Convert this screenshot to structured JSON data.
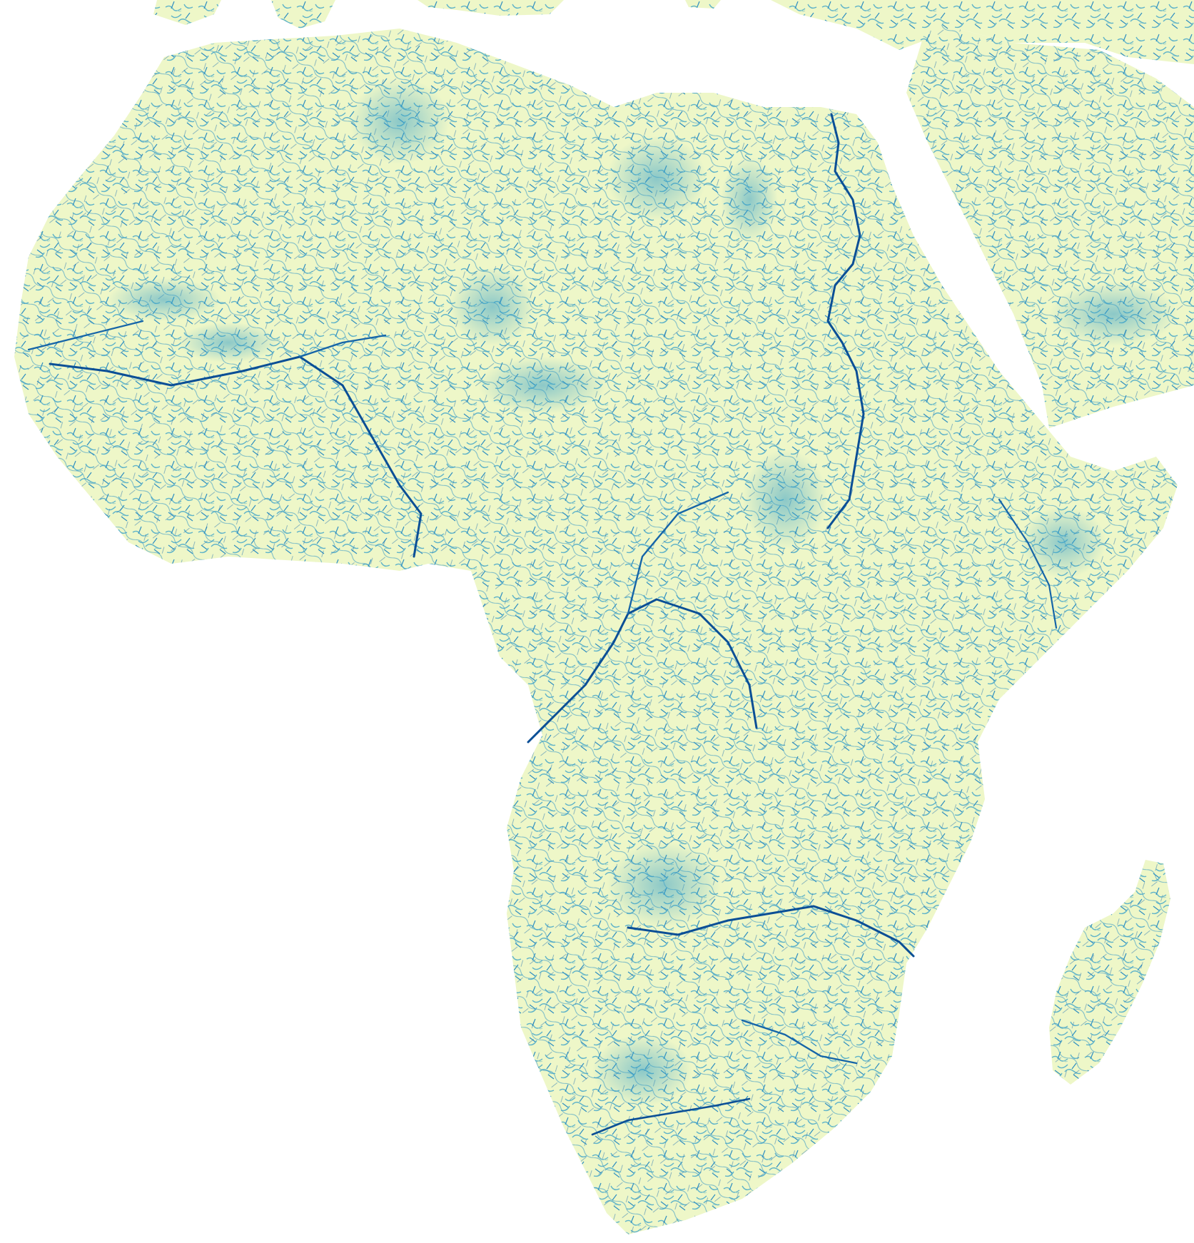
{
  "map": {
    "subject": "africa-river-network",
    "colors": {
      "background": "#ffffff",
      "land_light": "#f4f9c8",
      "land_mid": "#c9e7c4",
      "stream_light": "#7cc4c8",
      "stream_mid": "#2c8fbf",
      "stream_dark": "#0b4f96"
    },
    "landmasses": [
      "africa-mainland",
      "madagascar",
      "arabian-peninsula",
      "southern-europe-coast",
      "levant-anatolia"
    ],
    "major_rivers": [
      "nile",
      "niger",
      "congo",
      "zambezi",
      "orange",
      "limpopo",
      "senegal",
      "juba-shabelle"
    ]
  }
}
